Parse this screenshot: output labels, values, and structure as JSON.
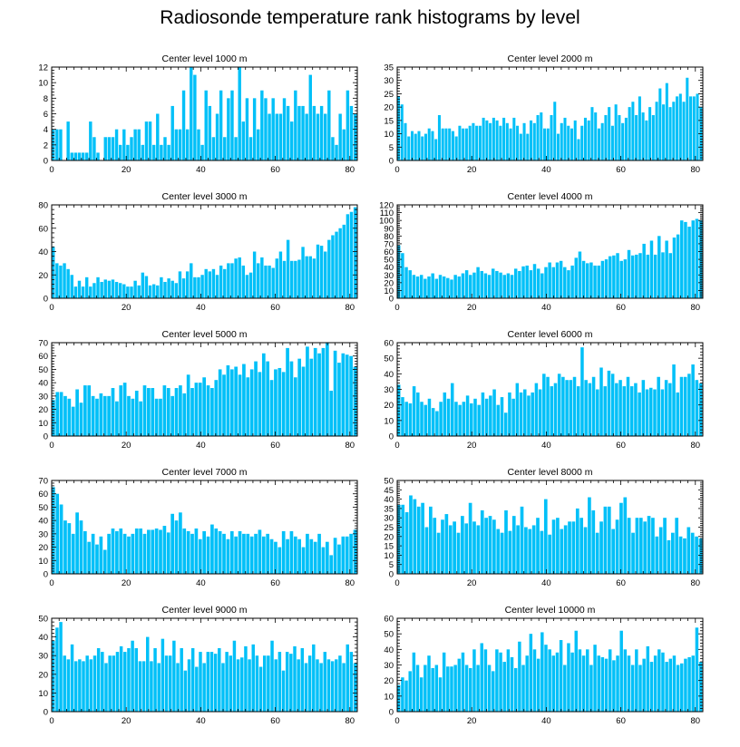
{
  "title": "Radiosonde temperature rank histograms by level",
  "chart_data": [
    {
      "type": "bar",
      "title": "Center level 1000 m",
      "ylim": [
        0,
        12
      ],
      "yticks": [
        0,
        2,
        4,
        6,
        8,
        10,
        12
      ],
      "xlim": [
        0,
        82
      ],
      "xticks": [
        0,
        20,
        40,
        60,
        80
      ],
      "values": [
        4,
        4,
        4,
        0,
        5,
        1,
        1,
        1,
        1,
        1,
        5,
        3,
        1,
        0,
        3,
        3,
        3,
        4,
        2,
        4,
        2,
        3,
        4,
        4,
        2,
        5,
        5,
        2,
        6,
        2,
        3,
        2,
        7,
        4,
        4,
        9,
        4,
        12,
        11,
        4,
        2,
        9,
        7,
        3,
        6,
        9,
        3,
        8,
        9,
        3,
        12,
        5,
        8,
        3,
        8,
        4,
        9,
        8,
        6,
        8,
        6,
        6,
        8,
        7,
        5,
        9,
        7,
        7,
        6,
        11,
        7,
        6,
        7,
        6,
        9,
        3,
        2,
        6,
        4,
        9,
        7,
        6
      ]
    },
    {
      "type": "bar",
      "title": "Center level 2000 m",
      "ylim": [
        0,
        35
      ],
      "yticks": [
        0,
        5,
        10,
        15,
        20,
        25,
        30,
        35
      ],
      "xlim": [
        0,
        82
      ],
      "xticks": [
        0,
        20,
        40,
        60,
        80
      ],
      "values": [
        24,
        21,
        14,
        9,
        11,
        10,
        11,
        9,
        10,
        12,
        11,
        8,
        17,
        12,
        12,
        12,
        11,
        9,
        13,
        12,
        12,
        13,
        14,
        13,
        13,
        16,
        15,
        14,
        16,
        15,
        13,
        16,
        14,
        12,
        16,
        13,
        10,
        14,
        10,
        15,
        14,
        17,
        18,
        12,
        12,
        17,
        22,
        10,
        14,
        16,
        13,
        12,
        15,
        8,
        13,
        16,
        15,
        20,
        18,
        12,
        14,
        17,
        20,
        13,
        21,
        17,
        14,
        16,
        20,
        22,
        17,
        24,
        18,
        15,
        20,
        17,
        22,
        27,
        21,
        29,
        20,
        22,
        24,
        25,
        22,
        31,
        24,
        24,
        25,
        20
      ]
    },
    {
      "type": "bar",
      "title": "Center level 3000 m",
      "ylim": [
        0,
        80
      ],
      "yticks": [
        0,
        20,
        40,
        60,
        80
      ],
      "xlim": [
        0,
        82
      ],
      "xticks": [
        0,
        20,
        40,
        60,
        80
      ],
      "values": [
        44,
        30,
        28,
        30,
        25,
        20,
        10,
        15,
        10,
        18,
        10,
        13,
        18,
        14,
        16,
        15,
        16,
        14,
        13,
        12,
        10,
        10,
        15,
        11,
        22,
        19,
        11,
        12,
        11,
        18,
        14,
        17,
        15,
        13,
        23,
        17,
        23,
        30,
        18,
        18,
        20,
        25,
        23,
        25,
        20,
        28,
        25,
        30,
        30,
        34,
        35,
        28,
        20,
        22,
        40,
        30,
        35,
        28,
        28,
        26,
        34,
        40,
        32,
        50,
        32,
        32,
        33,
        44,
        36,
        36,
        34,
        46,
        45,
        40,
        50,
        54,
        57,
        60,
        63,
        72,
        74,
        78
      ]
    },
    {
      "type": "bar",
      "title": "Center level 4000 m",
      "ylim": [
        0,
        120
      ],
      "yticks": [
        0,
        10,
        20,
        30,
        40,
        50,
        60,
        70,
        80,
        90,
        100,
        110,
        120
      ],
      "xlim": [
        0,
        82
      ],
      "xticks": [
        0,
        20,
        40,
        60,
        80
      ],
      "values": [
        68,
        58,
        40,
        36,
        30,
        28,
        30,
        25,
        28,
        32,
        25,
        30,
        28,
        26,
        24,
        30,
        28,
        32,
        36,
        30,
        33,
        40,
        35,
        32,
        30,
        38,
        35,
        33,
        30,
        32,
        30,
        38,
        35,
        41,
        42,
        36,
        44,
        38,
        32,
        40,
        46,
        40,
        46,
        48,
        40,
        36,
        42,
        52,
        60,
        48,
        45,
        46,
        42,
        42,
        48,
        50,
        54,
        55,
        58,
        48,
        50,
        62,
        55,
        56,
        58,
        70,
        56,
        74,
        56,
        80,
        59,
        74,
        58,
        78,
        82,
        100,
        98,
        92,
        100,
        102,
        100
      ]
    },
    {
      "type": "bar",
      "title": "Center level 5000 m",
      "ylim": [
        0,
        70
      ],
      "yticks": [
        0,
        10,
        20,
        30,
        40,
        50,
        60,
        70
      ],
      "xlim": [
        0,
        82
      ],
      "xticks": [
        0,
        20,
        40,
        60,
        80
      ],
      "values": [
        27,
        33,
        33,
        30,
        28,
        22,
        35,
        25,
        38,
        38,
        30,
        28,
        32,
        30,
        30,
        36,
        26,
        38,
        40,
        30,
        28,
        34,
        26,
        38,
        36,
        36,
        28,
        28,
        38,
        36,
        30,
        36,
        38,
        32,
        46,
        36,
        40,
        40,
        44,
        38,
        36,
        42,
        50,
        46,
        53,
        50,
        52,
        46,
        54,
        44,
        50,
        56,
        48,
        62,
        56,
        42,
        50,
        51,
        48,
        66,
        56,
        44,
        58,
        52,
        67,
        58,
        66,
        62,
        66,
        70,
        34,
        64,
        55,
        62,
        61,
        60,
        52
      ]
    },
    {
      "type": "bar",
      "title": "Center level 6000 m",
      "ylim": [
        0,
        60
      ],
      "yticks": [
        0,
        10,
        20,
        30,
        40,
        50,
        60
      ],
      "xlim": [
        0,
        82
      ],
      "xticks": [
        0,
        20,
        40,
        60,
        80
      ],
      "values": [
        33,
        25,
        22,
        21,
        32,
        28,
        22,
        20,
        24,
        18,
        16,
        22,
        28,
        24,
        34,
        22,
        20,
        22,
        26,
        21,
        24,
        20,
        28,
        24,
        26,
        30,
        20,
        25,
        15,
        28,
        24,
        34,
        28,
        30,
        26,
        28,
        34,
        30,
        40,
        38,
        32,
        34,
        40,
        38,
        36,
        36,
        38,
        32,
        57,
        36,
        34,
        38,
        30,
        44,
        32,
        42,
        40,
        34,
        36,
        32,
        38,
        32,
        34,
        28,
        36,
        30,
        31,
        30,
        38,
        30,
        36,
        34,
        46,
        28,
        38,
        38,
        40,
        46,
        36,
        34
      ]
    },
    {
      "type": "bar",
      "title": "Center level 7000 m",
      "ylim": [
        0,
        70
      ],
      "yticks": [
        0,
        10,
        20,
        30,
        40,
        50,
        60,
        70
      ],
      "xlim": [
        0,
        82
      ],
      "xticks": [
        0,
        20,
        40,
        60,
        80
      ],
      "values": [
        65,
        60,
        52,
        40,
        38,
        30,
        46,
        40,
        32,
        24,
        30,
        22,
        28,
        18,
        30,
        34,
        32,
        34,
        30,
        28,
        30,
        34,
        34,
        30,
        33,
        33,
        34,
        33,
        36,
        31,
        45,
        40,
        46,
        34,
        32,
        30,
        34,
        26,
        32,
        28,
        37,
        34,
        32,
        30,
        26,
        32,
        28,
        32,
        30,
        30,
        28,
        30,
        33,
        28,
        30,
        26,
        24,
        20,
        32,
        26,
        32,
        28,
        26,
        20,
        30,
        26,
        24,
        30,
        20,
        24,
        14,
        27,
        22,
        28,
        28,
        30,
        33
      ]
    },
    {
      "type": "bar",
      "title": "Center level 8000 m",
      "ylim": [
        0,
        50
      ],
      "yticks": [
        0,
        5,
        10,
        15,
        20,
        25,
        30,
        35,
        40,
        45,
        50
      ],
      "xlim": [
        0,
        82
      ],
      "xticks": [
        0,
        20,
        40,
        60,
        80
      ],
      "values": [
        37,
        37,
        33,
        42,
        40,
        36,
        38,
        25,
        36,
        30,
        22,
        29,
        32,
        26,
        28,
        22,
        31,
        27,
        38,
        28,
        26,
        34,
        30,
        31,
        29,
        24,
        22,
        34,
        23,
        31,
        26,
        36,
        25,
        24,
        26,
        30,
        23,
        40,
        21,
        29,
        30,
        24,
        26,
        28,
        28,
        35,
        30,
        25,
        41,
        34,
        22,
        28,
        36,
        36,
        24,
        29,
        38,
        41,
        30,
        22,
        30,
        30,
        28,
        31,
        30,
        20,
        25,
        30,
        18,
        22,
        30,
        20,
        19,
        25,
        22,
        20,
        19
      ]
    },
    {
      "type": "bar",
      "title": "Center level 9000 m",
      "ylim": [
        0,
        50
      ],
      "yticks": [
        0,
        10,
        20,
        30,
        40,
        50
      ],
      "xlim": [
        0,
        82
      ],
      "xticks": [
        0,
        20,
        40,
        60,
        80
      ],
      "values": [
        38,
        45,
        48,
        30,
        28,
        36,
        27,
        28,
        27,
        30,
        28,
        30,
        34,
        32,
        26,
        30,
        30,
        32,
        35,
        32,
        34,
        38,
        34,
        27,
        27,
        40,
        27,
        34,
        26,
        39,
        30,
        30,
        38,
        26,
        34,
        22,
        28,
        34,
        24,
        32,
        26,
        32,
        32,
        31,
        34,
        26,
        32,
        30,
        38,
        28,
        29,
        35,
        28,
        36,
        30,
        24,
        30,
        30,
        38,
        28,
        32,
        22,
        32,
        31,
        35,
        28,
        34,
        26,
        30,
        36,
        28,
        26,
        32,
        28,
        27,
        28,
        30,
        26,
        36,
        32,
        26
      ]
    },
    {
      "type": "bar",
      "title": "Center level 10000 m",
      "ylim": [
        0,
        60
      ],
      "yticks": [
        0,
        10,
        20,
        30,
        40,
        50,
        60
      ],
      "xlim": [
        0,
        82
      ],
      "xticks": [
        0,
        20,
        40,
        60,
        80
      ],
      "values": [
        17,
        22,
        20,
        26,
        38,
        30,
        22,
        30,
        36,
        28,
        30,
        22,
        38,
        29,
        29,
        30,
        34,
        38,
        30,
        28,
        40,
        30,
        44,
        40,
        30,
        26,
        40,
        38,
        32,
        40,
        35,
        28,
        45,
        30,
        36,
        50,
        40,
        34,
        51,
        43,
        40,
        36,
        38,
        46,
        30,
        44,
        38,
        52,
        40,
        36,
        40,
        30,
        43,
        36,
        35,
        34,
        40,
        33,
        36,
        52,
        40,
        36,
        30,
        40,
        30,
        34,
        42,
        32,
        36,
        40,
        38,
        32,
        34,
        36,
        30,
        31,
        34,
        35,
        36,
        54,
        32
      ]
    }
  ],
  "colors": {
    "bar": "#00c0f8",
    "bar_edge": "#ffffff",
    "axis": "#000000"
  }
}
